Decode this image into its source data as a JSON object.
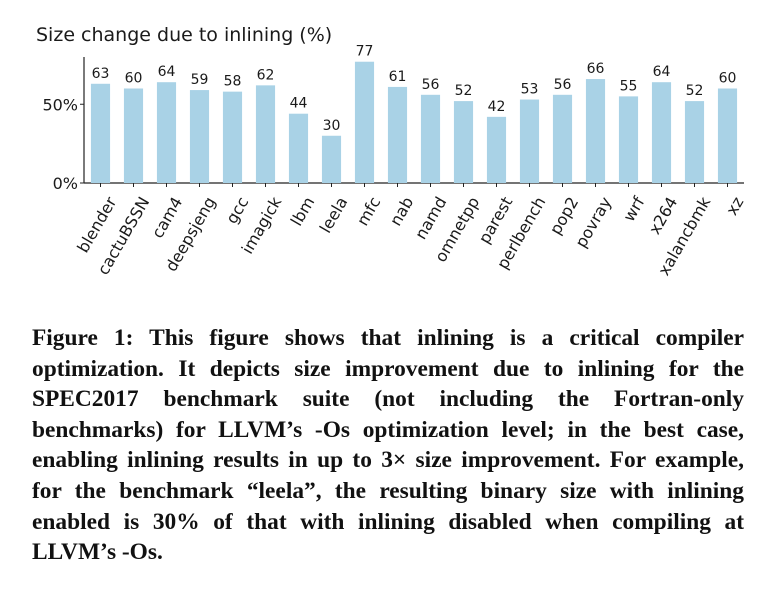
{
  "chart_data": {
    "type": "bar",
    "title": "Size change due to inlining (%)",
    "xlabel": "",
    "ylabel": "",
    "categories": [
      "blender",
      "cactuBSSN",
      "cam4",
      "deepsjeng",
      "gcc",
      "imagick",
      "lbm",
      "leela",
      "mfc",
      "nab",
      "namd",
      "omnetpp",
      "parest",
      "perlbench",
      "pop2",
      "povray",
      "wrf",
      "x264",
      "xalancbmk",
      "xz"
    ],
    "values": [
      63,
      60,
      64,
      59,
      58,
      62,
      44,
      30,
      77,
      61,
      56,
      52,
      42,
      53,
      56,
      66,
      55,
      64,
      52,
      60
    ],
    "ylim": [
      0,
      80
    ],
    "yticks": [
      0,
      50
    ],
    "ytick_labels": [
      "0%",
      "50%"
    ],
    "bar_color": "#a9d2e6",
    "grid": false,
    "legend": "none"
  },
  "caption": "Figure 1: This figure shows that inlining is a critical compiler optimization. It depicts size improvement due to inlining for the SPEC2017 benchmark suite (not including the Fortran-only benchmarks) for LLVM’s -Os optimization level; in the best case, enabling inlining results in up to 3× size improvement. For example, for the benchmark “leela”, the resulting binary size with inlining enabled is 30% of that with inlining disabled when compiling at LLVM’s -Os."
}
